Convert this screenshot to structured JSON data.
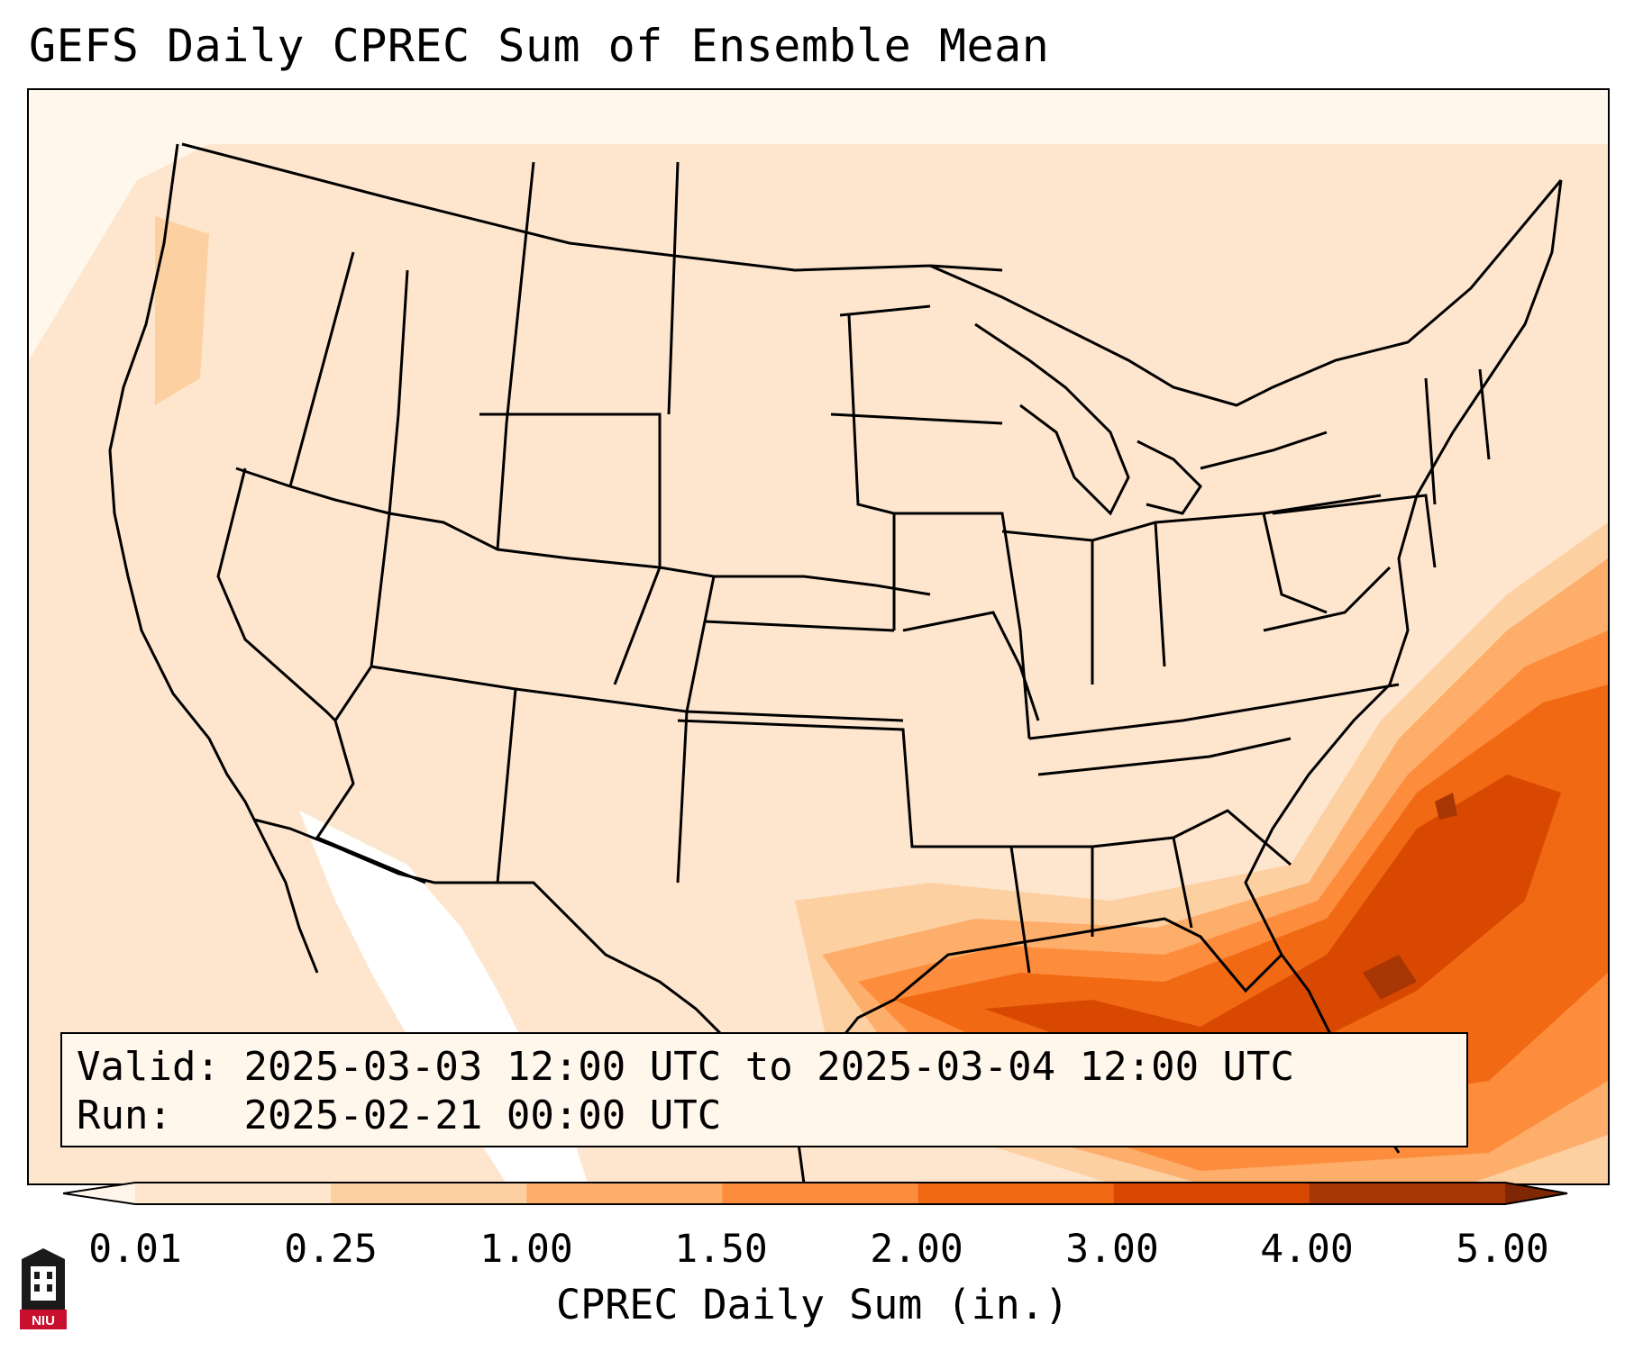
{
  "title": "GEFS Daily CPREC Sum of Ensemble Mean",
  "info": {
    "valid_label": "Valid:",
    "valid_value": "2025-03-03 12:00 UTC to 2025-03-04 12:00 UTC",
    "run_label": "Run:",
    "run_value": "2025-02-21 00:00 UTC"
  },
  "colorbar": {
    "label": "CPREC Daily Sum (in.)",
    "ticks": [
      "0.01",
      "0.25",
      "1.00",
      "1.50",
      "2.00",
      "3.00",
      "4.00",
      "5.00"
    ],
    "colors": [
      "#fff5eb",
      "#fee6ce",
      "#fdd0a2",
      "#fdae6b",
      "#fd8d3c",
      "#f16913",
      "#d94801",
      "#a63603",
      "#7f2704"
    ]
  },
  "logo": {
    "text": "NIU"
  }
}
